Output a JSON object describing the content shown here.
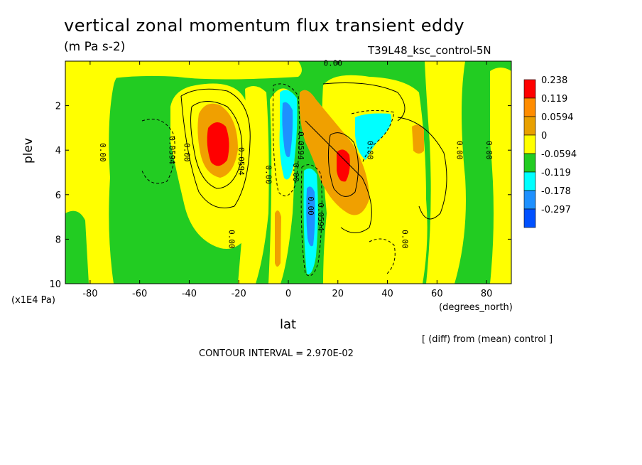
{
  "chart_data": {
    "type": "heatmap",
    "title": "vertical zonal momentum flux transient eddy",
    "subtitle": "(m Pa s-2)",
    "run_label": "T39L48_ksc_control-5N",
    "xlabel": "lat",
    "x_units": "(degrees_north)",
    "ylabel": "plev",
    "y_units": "(x1E4 Pa)",
    "xlim": [
      -90,
      90
    ],
    "ylim": [
      10,
      0
    ],
    "x_ticks": [
      "-80",
      "-60",
      "-40",
      "-20",
      "0",
      "20",
      "40",
      "60",
      "80"
    ],
    "y_ticks": [
      "2",
      "4",
      "6",
      "8",
      "10"
    ],
    "legend": {
      "placement": "right",
      "labels": [
        "0.238",
        "0.119",
        "0.0594",
        "0",
        "-0.0594",
        "-0.119",
        "-0.178",
        "-0.297"
      ],
      "colors": [
        "#ff0000",
        "#ff8c00",
        "#e8a000",
        "#ffff00",
        "#22cc22",
        "#00ffff",
        "#1e90ff",
        "#0050ff"
      ]
    },
    "contour_labels": [
      "0.00",
      "0.00",
      "0.00",
      "0.0594",
      "0.00",
      "0.0594",
      "0.00",
      "0.00",
      "0.0594",
      "0.00",
      "0.00",
      "0.00",
      "0.00",
      "0.0594",
      "0.00"
    ],
    "note": "[ (diff) from (mean) control ]",
    "contour_interval": "CONTOUR INTERVAL = 2.970E-02",
    "colors": {
      "green": "#22cc22",
      "yellow": "#ffff00",
      "orange": "#f0a000",
      "red": "#ff0000",
      "cyan": "#00ffff",
      "blue": "#1e90ff",
      "darkblue": "#0050ff"
    }
  }
}
